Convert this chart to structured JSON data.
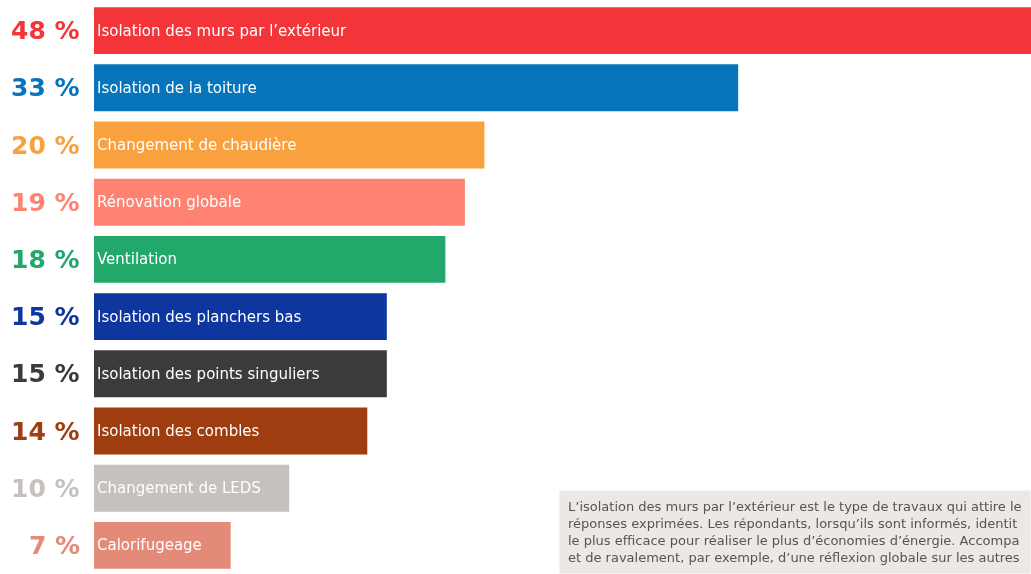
{
  "chart_data": {
    "type": "bar",
    "orientation": "horizontal",
    "categories": [
      "Isolation des murs par l’extérieur",
      "Isolation de la toiture",
      "Changement de chaudière",
      "Rénovation globale",
      "Ventilation",
      "Isolation des planchers bas",
      "Isolation des points singuliers",
      "Isolation des combles",
      "Changement de LEDS",
      "Calorifugeage"
    ],
    "values": [
      48,
      33,
      20,
      19,
      18,
      15,
      15,
      14,
      10,
      7
    ],
    "value_labels": [
      "48 %",
      "33 %",
      "20 %",
      "19 %",
      "18 %",
      "15 %",
      "15 %",
      "14 %",
      "10 %",
      "7 %"
    ],
    "colors": [
      "#f3353a",
      "#0775bc",
      "#f9a03f",
      "#ff8370",
      "#22a86b",
      "#0d369e",
      "#3b3b3b",
      "#9e3d10",
      "#c6c1be",
      "#e48a78"
    ],
    "xlim": [
      0,
      48
    ],
    "grid": false,
    "annotations": [
      "L’isolation des murs par l’extérieur est le type de travaux qui attire le\nréponses exprimées. Les répondants, lorsqu’ils sont informés, identit\nle plus efficace pour réaliser le plus d’économies d’énergie. Accompa\net de ravalement, par exemple, d’une réflexion globale sur les autres"
    ]
  }
}
